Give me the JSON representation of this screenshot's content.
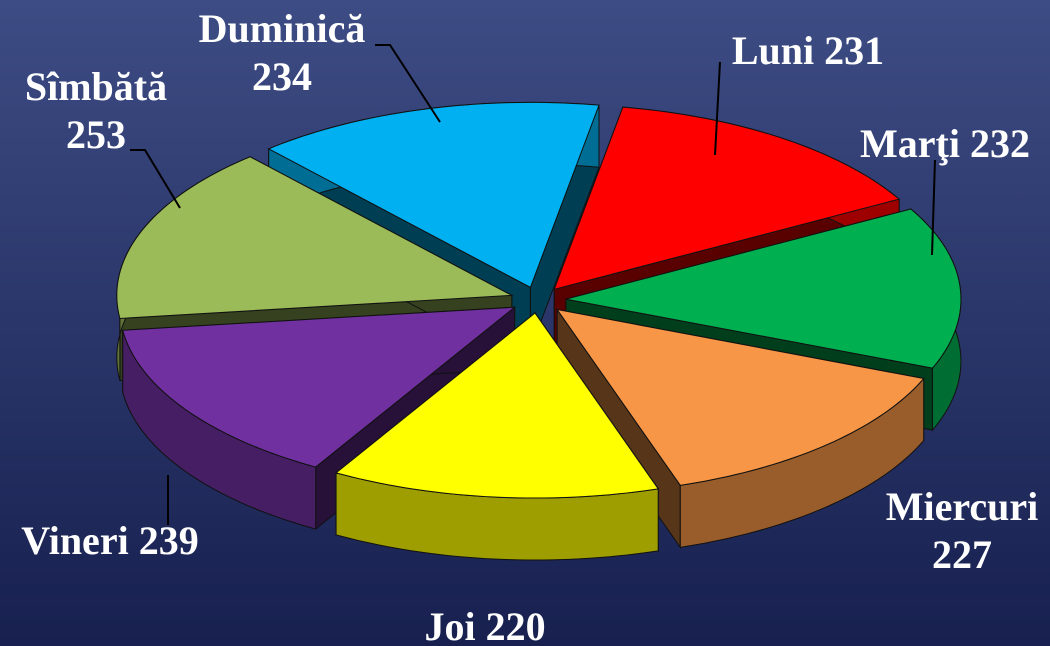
{
  "chart_data": {
    "type": "pie3d",
    "categories": [
      "Luni",
      "Marţi",
      "Miercuri",
      "Joi",
      "Vineri",
      "Sîmbătă",
      "Duminică"
    ],
    "values": [
      231,
      232,
      227,
      220,
      239,
      253,
      234
    ],
    "colors": [
      "#ff0000",
      "#00b050",
      "#f79646",
      "#ffff00",
      "#7030a0",
      "#9bbb59",
      "#00b0f0"
    ]
  }
}
